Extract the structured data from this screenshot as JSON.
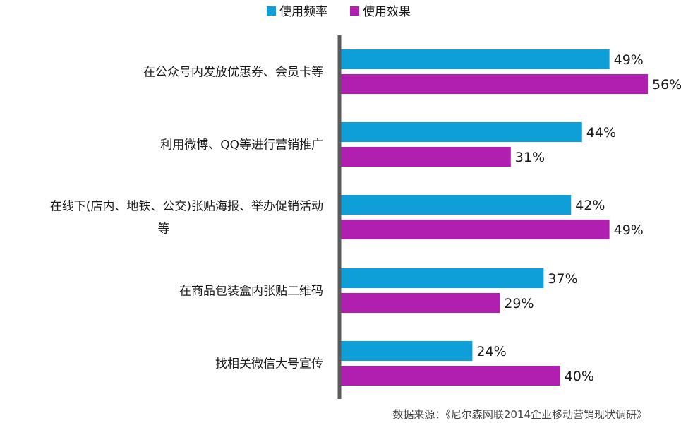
{
  "chart_data": {
    "type": "bar",
    "orientation": "horizontal",
    "categories": [
      [
        "在公众号内发放优惠券、会员卡等"
      ],
      [
        "利用微博、QQ等进行营销推广"
      ],
      [
        "在线下(店内、地铁、公交)张贴海报、举办促销活动",
        "等"
      ],
      [
        "在商品包装盒内张贴二维码"
      ],
      [
        "找相关微信大号宣传"
      ]
    ],
    "series": [
      {
        "name": "使用频率",
        "color": "#0f9fd8",
        "values": [
          49,
          44,
          42,
          37,
          24
        ]
      },
      {
        "name": "使用效果",
        "color": "#b01fb0",
        "values": [
          56,
          31,
          49,
          29,
          40
        ]
      }
    ],
    "value_suffix": "%",
    "xlim": [
      0,
      56
    ],
    "legend_position": "top-center",
    "grid": false
  },
  "source_note": "数据来源：《尼尔森网联2014企业移动营销现状调研》"
}
